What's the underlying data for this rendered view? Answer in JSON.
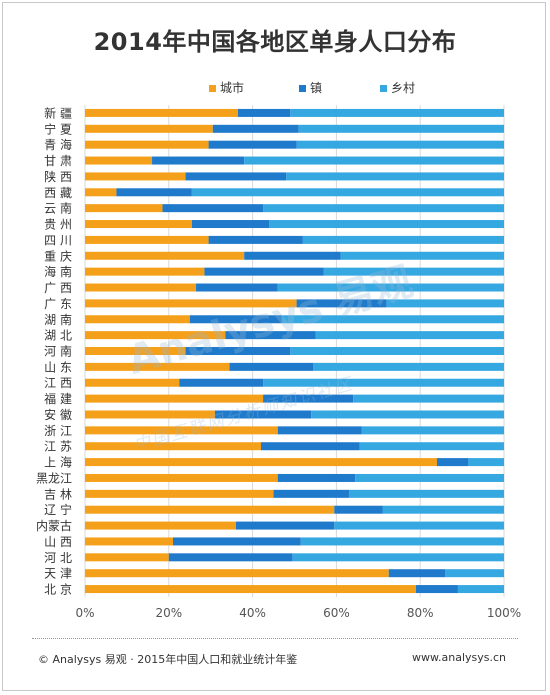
{
  "title": "2014年中国各地区单身人口分布",
  "footer": {
    "source": "© Analysys 易观 · 2015年中国人口和就业统计年鉴",
    "url": "www.analysys.cn"
  },
  "watermark": {
    "brand": "Analysys 易观",
    "slogan": "中国互联网分析师知识社区"
  },
  "chart_data": {
    "type": "bar",
    "orientation": "horizontal",
    "stacked": true,
    "percent": true,
    "title": "2014年中国各地区单身人口分布",
    "categories": [
      "新疆",
      "宁夏",
      "青海",
      "甘肃",
      "陕西",
      "西藏",
      "云南",
      "贵州",
      "四川",
      "重庆",
      "海南",
      "广西",
      "广东",
      "湖南",
      "湖北",
      "河南",
      "山东",
      "江西",
      "福建",
      "安徽",
      "浙江",
      "江苏",
      "上海",
      "黑龙江",
      "吉林",
      "辽宁",
      "内蒙古",
      "山西",
      "河北",
      "天津",
      "北京"
    ],
    "category_labels": [
      "新 疆",
      "宁 夏",
      "青 海",
      "甘 肃",
      "陕 西",
      "西 藏",
      "云 南",
      "贵 州",
      "四 川",
      "重 庆",
      "海 南",
      "广 西",
      "广 东",
      "湖 南",
      "湖 北",
      "河 南",
      "山 东",
      "江 西",
      "福 建",
      "安 徽",
      "浙 江",
      "江 苏",
      "上 海",
      "黑龙江",
      "吉 林",
      "辽 宁",
      "内蒙古",
      "山 西",
      "河 北",
      "天 津",
      "北 京"
    ],
    "series": [
      {
        "name": "城市",
        "color": "#f5a01a",
        "values": [
          36.5,
          30.5,
          29.5,
          16,
          24,
          7.5,
          18.5,
          25.5,
          29.5,
          38,
          28.5,
          26.5,
          50.5,
          25,
          33.5,
          24,
          34.5,
          22.5,
          42.5,
          31,
          46,
          42,
          84,
          46,
          45,
          59.5,
          36,
          21,
          20,
          72.5,
          79
        ]
      },
      {
        "name": "镇",
        "color": "#1f7acb",
        "values": [
          12.5,
          20.5,
          21,
          22,
          24,
          18,
          24,
          18.5,
          22.5,
          23,
          28.5,
          19.5,
          21.5,
          22,
          21.5,
          25,
          20,
          20,
          21.5,
          23,
          20,
          23.5,
          7.5,
          18.5,
          18,
          11.5,
          23.5,
          30.5,
          29.5,
          13.5,
          10
        ]
      },
      {
        "name": "乡村",
        "color": "#36a8e1",
        "values": [
          51,
          49,
          49.5,
          62,
          52,
          74.5,
          57.5,
          56,
          48,
          39,
          43,
          54,
          28,
          53,
          45,
          51,
          45.5,
          57.5,
          36,
          46,
          34,
          34.5,
          8.5,
          35.5,
          37,
          29,
          40.5,
          48.5,
          50.5,
          14,
          11
        ]
      }
    ],
    "x_ticks": [
      "0%",
      "20%",
      "40%",
      "60%",
      "80%",
      "100%"
    ],
    "xlim": [
      0,
      100
    ],
    "grid": true,
    "legend": "top-right"
  }
}
